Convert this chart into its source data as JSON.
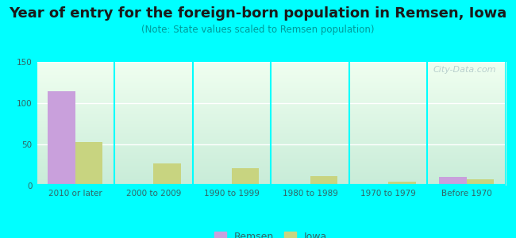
{
  "title": "Year of entry for the foreign-born population in Remsen, Iowa",
  "subtitle": "(Note: State values scaled to Remsen population)",
  "categories": [
    "2010 or later",
    "2000 to 2009",
    "1990 to 1999",
    "1980 to 1989",
    "1970 to 1979",
    "Before 1970"
  ],
  "remsen_values": [
    114,
    0,
    0,
    0,
    0,
    11
  ],
  "iowa_values": [
    53,
    27,
    21,
    12,
    5,
    8
  ],
  "remsen_color": "#c9a0dc",
  "iowa_color": "#c8d480",
  "background_outer": "#00FFFF",
  "background_inner_top": "#f0fff0",
  "background_inner_bottom": "#c8ecd8",
  "ylim": [
    0,
    150
  ],
  "yticks": [
    0,
    50,
    100,
    150
  ],
  "bar_width": 0.35,
  "title_fontsize": 13,
  "subtitle_fontsize": 8.5,
  "tick_fontsize": 7.5,
  "legend_fontsize": 9,
  "watermark_text": "City-Data.com",
  "watermark_color": "#b0c8c8",
  "grid_color": "#e0e0e0",
  "axis_line_color": "#aaaaaa",
  "divider_color": "#00FFFF"
}
